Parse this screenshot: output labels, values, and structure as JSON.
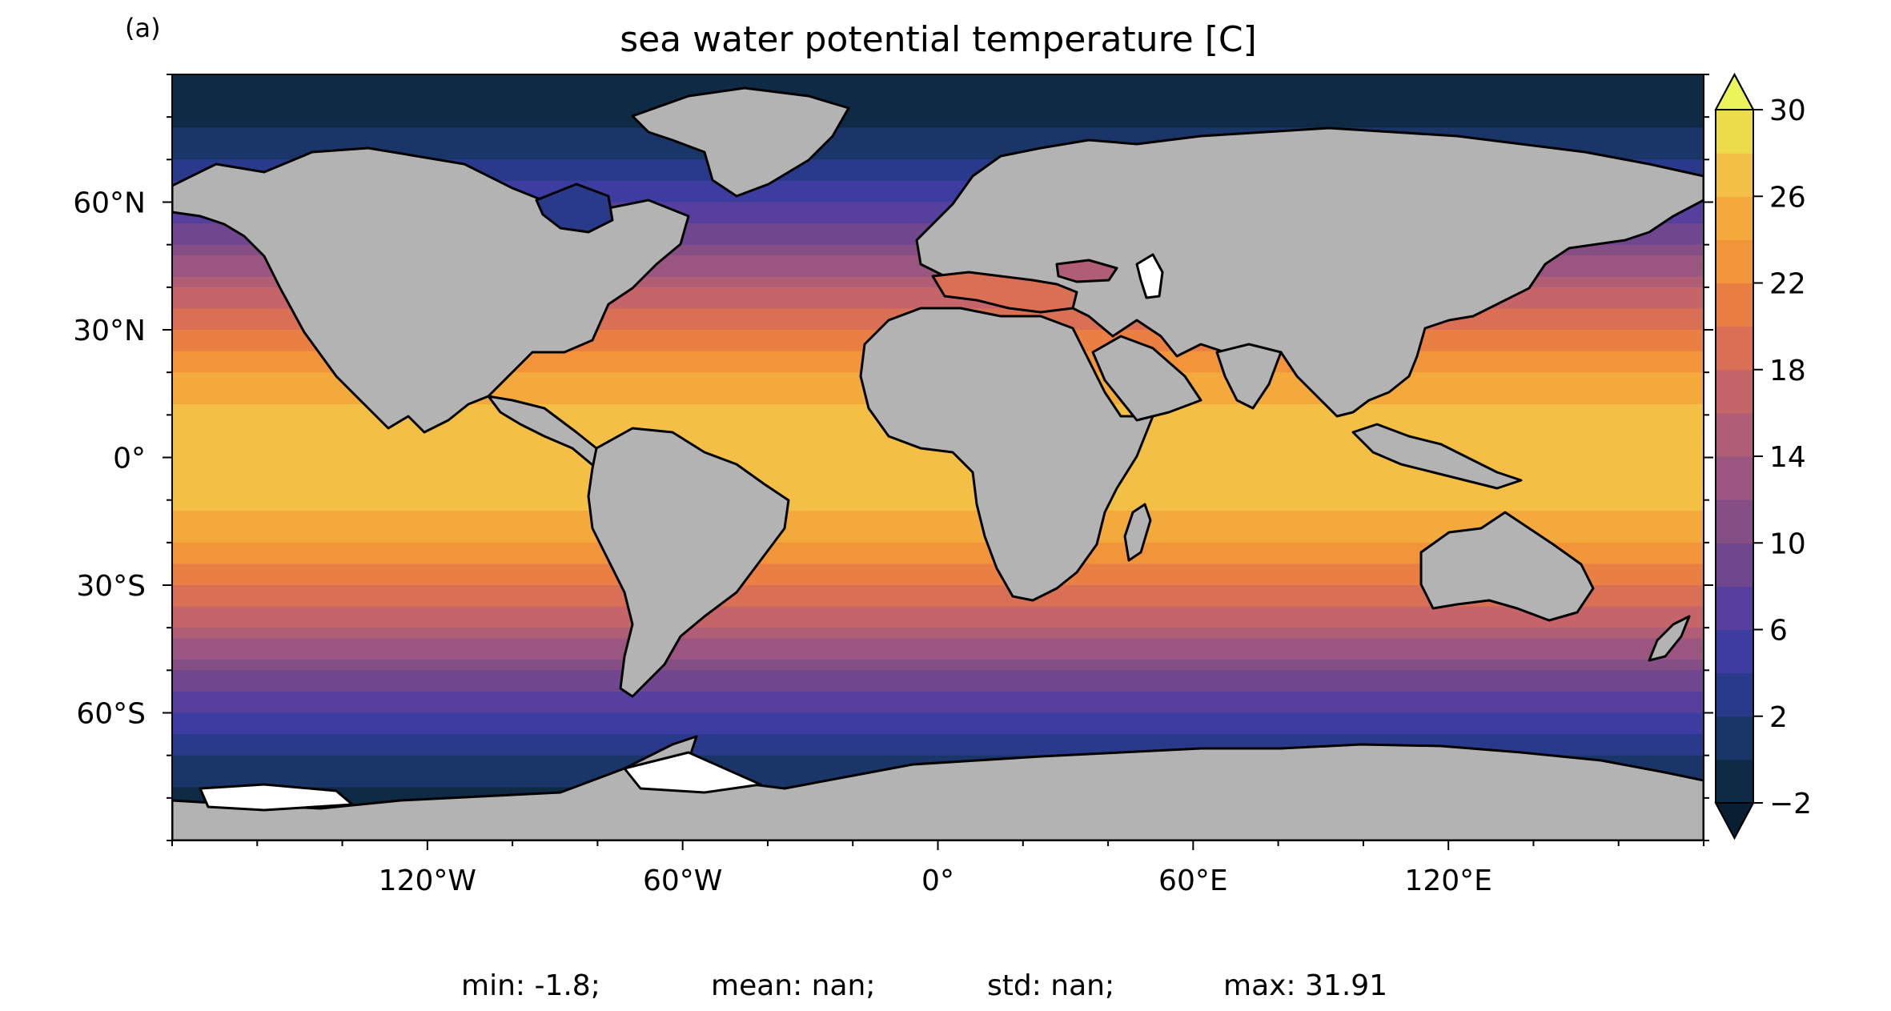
{
  "panel_label": "(a)",
  "title": "sea water potential temperature [C]",
  "map": {
    "projection": "PlateCarree",
    "lon_range": [
      -180,
      180
    ],
    "lat_range": [
      -90,
      90
    ],
    "land_color": "#b3b3b3",
    "coastline_color": "#000000",
    "lon_ticks": [
      {
        "value": -120,
        "label": "120°W"
      },
      {
        "value": -60,
        "label": "60°W"
      },
      {
        "value": 0,
        "label": "0°"
      },
      {
        "value": 60,
        "label": "60°E"
      },
      {
        "value": 120,
        "label": "120°E"
      }
    ],
    "lat_ticks": [
      {
        "value": 60,
        "label": "60°N"
      },
      {
        "value": 30,
        "label": "30°N"
      },
      {
        "value": 0,
        "label": "0°"
      },
      {
        "value": -30,
        "label": "30°S"
      },
      {
        "value": -60,
        "label": "60°S"
      }
    ]
  },
  "colorbar": {
    "ticks": [
      {
        "value": 30,
        "label": "30"
      },
      {
        "value": 26,
        "label": "26"
      },
      {
        "value": 22,
        "label": "22"
      },
      {
        "value": 18,
        "label": "18"
      },
      {
        "value": 14,
        "label": "14"
      },
      {
        "value": 10,
        "label": "10"
      },
      {
        "value": 6,
        "label": "6"
      },
      {
        "value": 2,
        "label": "2"
      },
      {
        "value": -2,
        "label": "−2"
      }
    ],
    "range": [
      -2,
      30
    ],
    "extend": "both",
    "levels": [
      {
        "from": -2,
        "to": 0,
        "color": "#0f2a45"
      },
      {
        "from": 0,
        "to": 2,
        "color": "#1a3568"
      },
      {
        "from": 2,
        "to": 4,
        "color": "#2a3a8a"
      },
      {
        "from": 4,
        "to": 6,
        "color": "#3d3ca0"
      },
      {
        "from": 6,
        "to": 8,
        "color": "#573f9e"
      },
      {
        "from": 8,
        "to": 10,
        "color": "#70468f"
      },
      {
        "from": 10,
        "to": 12,
        "color": "#854f86"
      },
      {
        "from": 12,
        "to": 14,
        "color": "#9a5580"
      },
      {
        "from": 14,
        "to": 16,
        "color": "#b05d76"
      },
      {
        "from": 16,
        "to": 18,
        "color": "#c5656a"
      },
      {
        "from": 18,
        "to": 20,
        "color": "#d97056"
      },
      {
        "from": 20,
        "to": 22,
        "color": "#ea7f43"
      },
      {
        "from": 22,
        "to": 24,
        "color": "#f1943a"
      },
      {
        "from": 24,
        "to": 26,
        "color": "#f4a93c"
      },
      {
        "from": 26,
        "to": 28,
        "color": "#f4bf45"
      },
      {
        "from": 28,
        "to": 30,
        "color": "#ecdc4c"
      }
    ],
    "under_color": "#0a1e33",
    "over_color": "#e9f55a"
  },
  "stats": {
    "min": "min: -1.8;",
    "mean": "mean: nan;",
    "std": "std: nan;",
    "max": "max: 31.91"
  }
}
